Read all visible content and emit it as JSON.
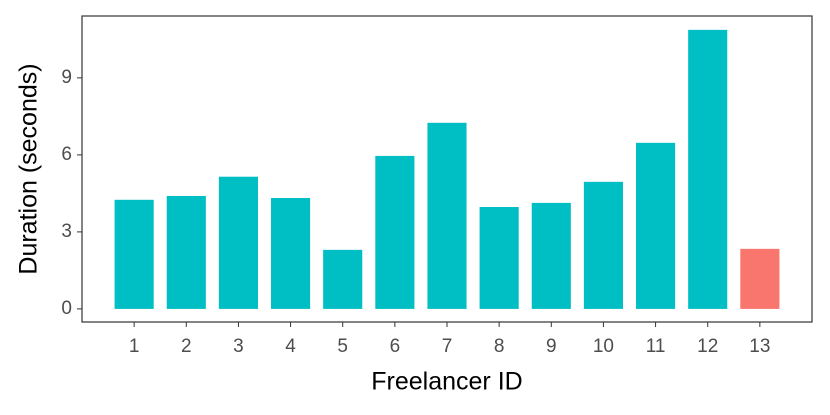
{
  "chart_data": {
    "type": "bar",
    "x_label": "Freelancer ID",
    "y_label": "Duration (seconds)",
    "categories": [
      "1",
      "2",
      "3",
      "4",
      "5",
      "6",
      "7",
      "8",
      "9",
      "10",
      "11",
      "12",
      "13"
    ],
    "values": [
      4.25,
      4.4,
      5.15,
      4.32,
      2.3,
      5.96,
      7.25,
      3.97,
      4.13,
      4.95,
      6.47,
      10.87,
      2.34
    ],
    "colors": [
      "#00BFC4",
      "#00BFC4",
      "#00BFC4",
      "#00BFC4",
      "#00BFC4",
      "#00BFC4",
      "#00BFC4",
      "#00BFC4",
      "#00BFC4",
      "#00BFC4",
      "#00BFC4",
      "#00BFC4",
      "#F8766D"
    ],
    "ylim": [
      -0.51,
      11.41
    ],
    "yticks": [
      0,
      3,
      6,
      9
    ],
    "grid": false
  }
}
